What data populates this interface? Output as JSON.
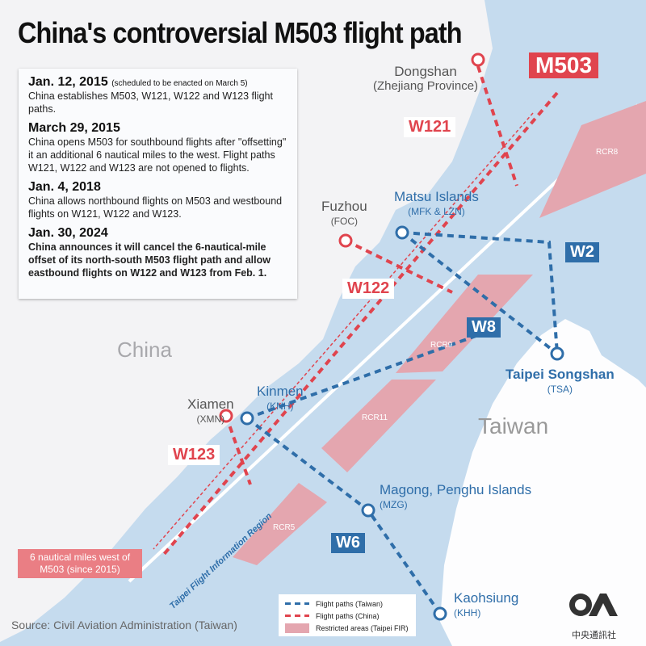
{
  "title": "China's controversial M503 flight path",
  "timeline": [
    {
      "date": "Jan. 12, 2015",
      "note": "(scheduled to be enacted on March 5)",
      "text": "China establishes M503, W121, W122 and W123 flight paths."
    },
    {
      "date": "March 29, 2015",
      "text": "China opens M503 for southbound flights after \"offsetting\" it an additional 6 nautical miles to the west. Flight paths W121, W122 and W123 are not opened to flights."
    },
    {
      "date": "Jan. 4, 2018",
      "text": "China allows northbound flights on M503 and westbound flights on W121, W122 and W123."
    },
    {
      "date": "Jan. 30, 2024",
      "text": "China announces it will cancel the 6-nautical-mile offset of its north-south M503 flight path and allow eastbound flights on W122 and W123 from Feb. 1."
    }
  ],
  "places": {
    "dongshan": {
      "name": "Dongshan",
      "sub": "(Zhejiang Province)"
    },
    "fuzhou": {
      "name": "Fuzhou",
      "sub": "(FOC)"
    },
    "matsu": {
      "name": "Matsu Islands",
      "sub": "(MFK & LZN)"
    },
    "taipei": {
      "name": "Taipei Songshan",
      "sub": "(TSA)"
    },
    "xiamen": {
      "name": "Xiamen",
      "sub": "(XMN)"
    },
    "kinmen": {
      "name": "Kinmen",
      "sub": "(KNH)"
    },
    "magong": {
      "name": "Magong, Penghu Islands",
      "sub": "(MZG)"
    },
    "kaohsiung": {
      "name": "Kaohsiung",
      "sub": "(KHH)"
    }
  },
  "regions": {
    "china": "China",
    "taiwan": "Taiwan",
    "fir": "Taipei Flight Information Region"
  },
  "routes": {
    "m503": "M503",
    "w121": "W121",
    "w122": "W122",
    "w123": "W123",
    "w2": "W2",
    "w8": "W8",
    "w6": "W6"
  },
  "restricted": {
    "rcr8": "RCR8",
    "rcr9": "RCR9",
    "rcr11": "RCR11",
    "rcr5": "RCR5"
  },
  "offset_callout": "6 nautical miles west of M503 (since 2015)",
  "legend": {
    "taiwan": "Flight paths (Taiwan)",
    "china": "Flight paths (China)",
    "restricted": "Restricted areas (Taipei FIR)"
  },
  "source": "Source: Civil Aviation Administration (Taiwan)",
  "logo": {
    "text": "CNA",
    "sub": "中央通訊社"
  },
  "colors": {
    "sea": "#c5dbee",
    "land": "#f3f3f5",
    "china_route": "#e0444e",
    "taiwan_route": "#2f6ea9",
    "restricted": "#e4a6af"
  }
}
